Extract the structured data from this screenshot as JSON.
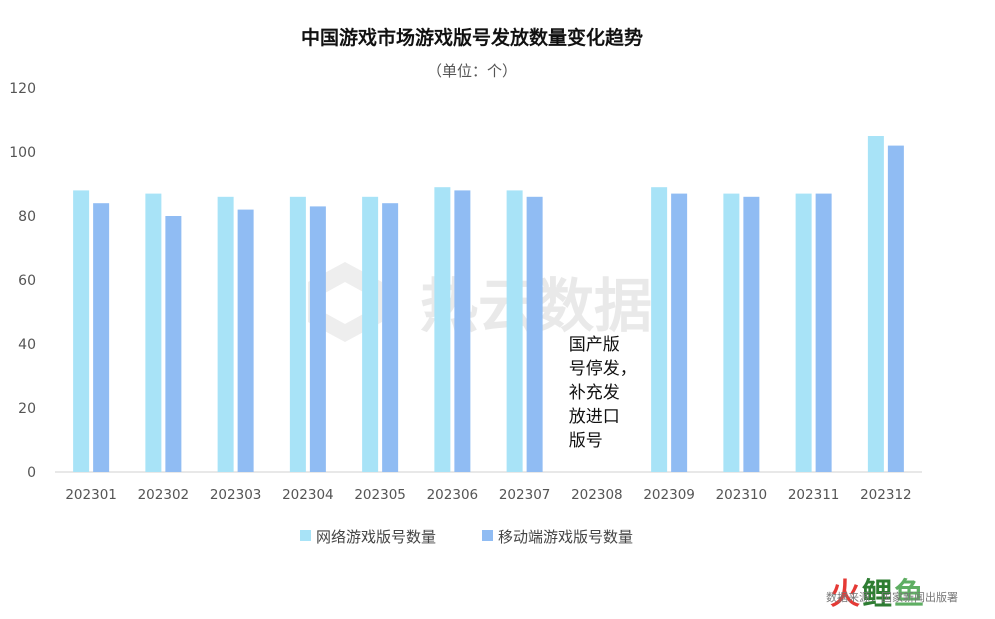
{
  "chart_data": {
    "type": "bar",
    "title": "中国游戏市场游戏版号发放数量变化趋势",
    "subtitle": "（单位：个）",
    "categories": [
      "202301",
      "202302",
      "202303",
      "202304",
      "202305",
      "202306",
      "202307",
      "202308",
      "202309",
      "202310",
      "202311",
      "202312"
    ],
    "series": [
      {
        "name": "网络游戏版号数量",
        "color": "#a8e3f7",
        "values": [
          88,
          87,
          86,
          86,
          86,
          89,
          88,
          0,
          89,
          87,
          87,
          105
        ]
      },
      {
        "name": "移动端游戏版号数量",
        "color": "#90bcf3",
        "values": [
          84,
          80,
          82,
          83,
          84,
          88,
          86,
          0,
          87,
          86,
          87,
          102
        ]
      }
    ],
    "ylim": [
      0,
      120
    ],
    "yticks": [
      0,
      20,
      40,
      60,
      80,
      100,
      120
    ],
    "xlabel": "",
    "ylabel": "",
    "grid": false,
    "legend_position": "bottom",
    "annotation": {
      "category": "202308",
      "lines": [
        "国产版",
        "号停发，",
        "补充发",
        "放进口",
        "版号"
      ]
    }
  },
  "watermark": {
    "text": "热云数据",
    "icon": "cube-logo-icon"
  },
  "source": "数据来源：国家新闻出版署",
  "logo": {
    "text": "火鲤鱼",
    "colors": [
      "#e53935",
      "#2e7d32"
    ]
  }
}
